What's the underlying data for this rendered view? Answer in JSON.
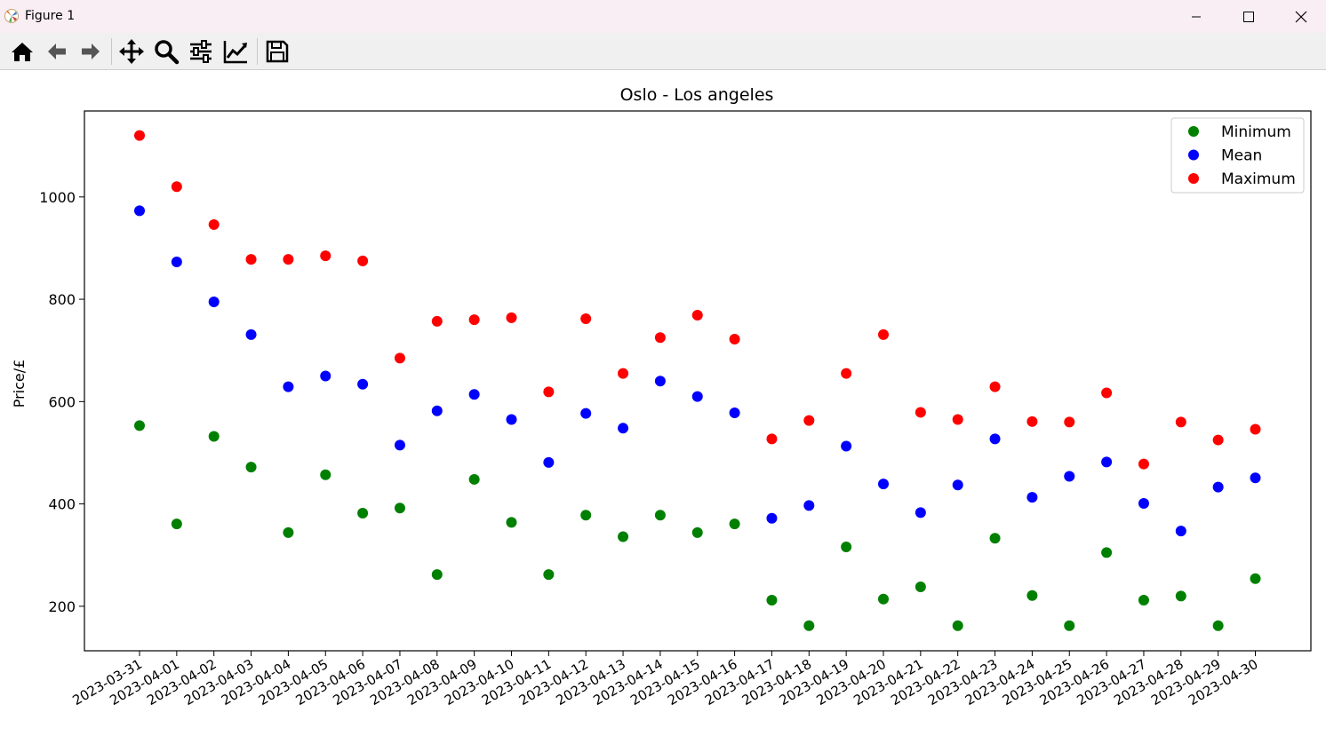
{
  "window": {
    "title": "Figure 1"
  },
  "toolbar": {
    "buttons": [
      "home-icon",
      "back-arrow-icon",
      "forward-arrow-icon",
      "pan-move-icon",
      "zoom-magnifier-icon",
      "configure-subplots-icon",
      "edit-axis-icon",
      "save-floppy-icon"
    ]
  },
  "chart_data": {
    "type": "scatter",
    "title": "Oslo - Los angeles",
    "xlabel": "",
    "ylabel": "Price/£",
    "ylim": [
      113,
      1168
    ],
    "yticks": [
      200,
      400,
      600,
      800,
      1000
    ],
    "grid": false,
    "legend_position": "top-right",
    "categories": [
      "2023-03-31",
      "2023-04-01",
      "2023-04-02",
      "2023-04-03",
      "2023-04-04",
      "2023-04-05",
      "2023-04-06",
      "2023-04-07",
      "2023-04-08",
      "2023-04-09",
      "2023-04-10",
      "2023-04-11",
      "2023-04-12",
      "2023-04-13",
      "2023-04-14",
      "2023-04-15",
      "2023-04-16",
      "2023-04-17",
      "2023-04-18",
      "2023-04-19",
      "2023-04-20",
      "2023-04-21",
      "2023-04-22",
      "2023-04-23",
      "2023-04-24",
      "2023-04-25",
      "2023-04-26",
      "2023-04-27",
      "2023-04-28",
      "2023-04-29",
      "2023-04-30"
    ],
    "series": [
      {
        "name": "Minimum",
        "color": "#008000",
        "values": [
          553,
          361,
          532,
          472,
          344,
          457,
          382,
          392,
          262,
          448,
          364,
          262,
          378,
          336,
          378,
          344,
          361,
          212,
          162,
          316,
          214,
          238,
          162,
          333,
          221,
          162,
          305,
          212,
          220,
          162,
          254
        ]
      },
      {
        "name": "Mean",
        "color": "#0000ff",
        "values": [
          973,
          873,
          795,
          731,
          629,
          650,
          634,
          515,
          582,
          614,
          565,
          481,
          577,
          548,
          640,
          610,
          578,
          372,
          397,
          513,
          439,
          383,
          437,
          527,
          413,
          454,
          482,
          401,
          347,
          433,
          451
        ]
      },
      {
        "name": "Maximum",
        "color": "#ff0000",
        "values": [
          1120,
          1020,
          946,
          878,
          878,
          885,
          875,
          685,
          757,
          760,
          764,
          619,
          762,
          655,
          725,
          769,
          722,
          527,
          563,
          655,
          731,
          579,
          565,
          629,
          561,
          560,
          617,
          478,
          560,
          525,
          546
        ]
      }
    ]
  }
}
